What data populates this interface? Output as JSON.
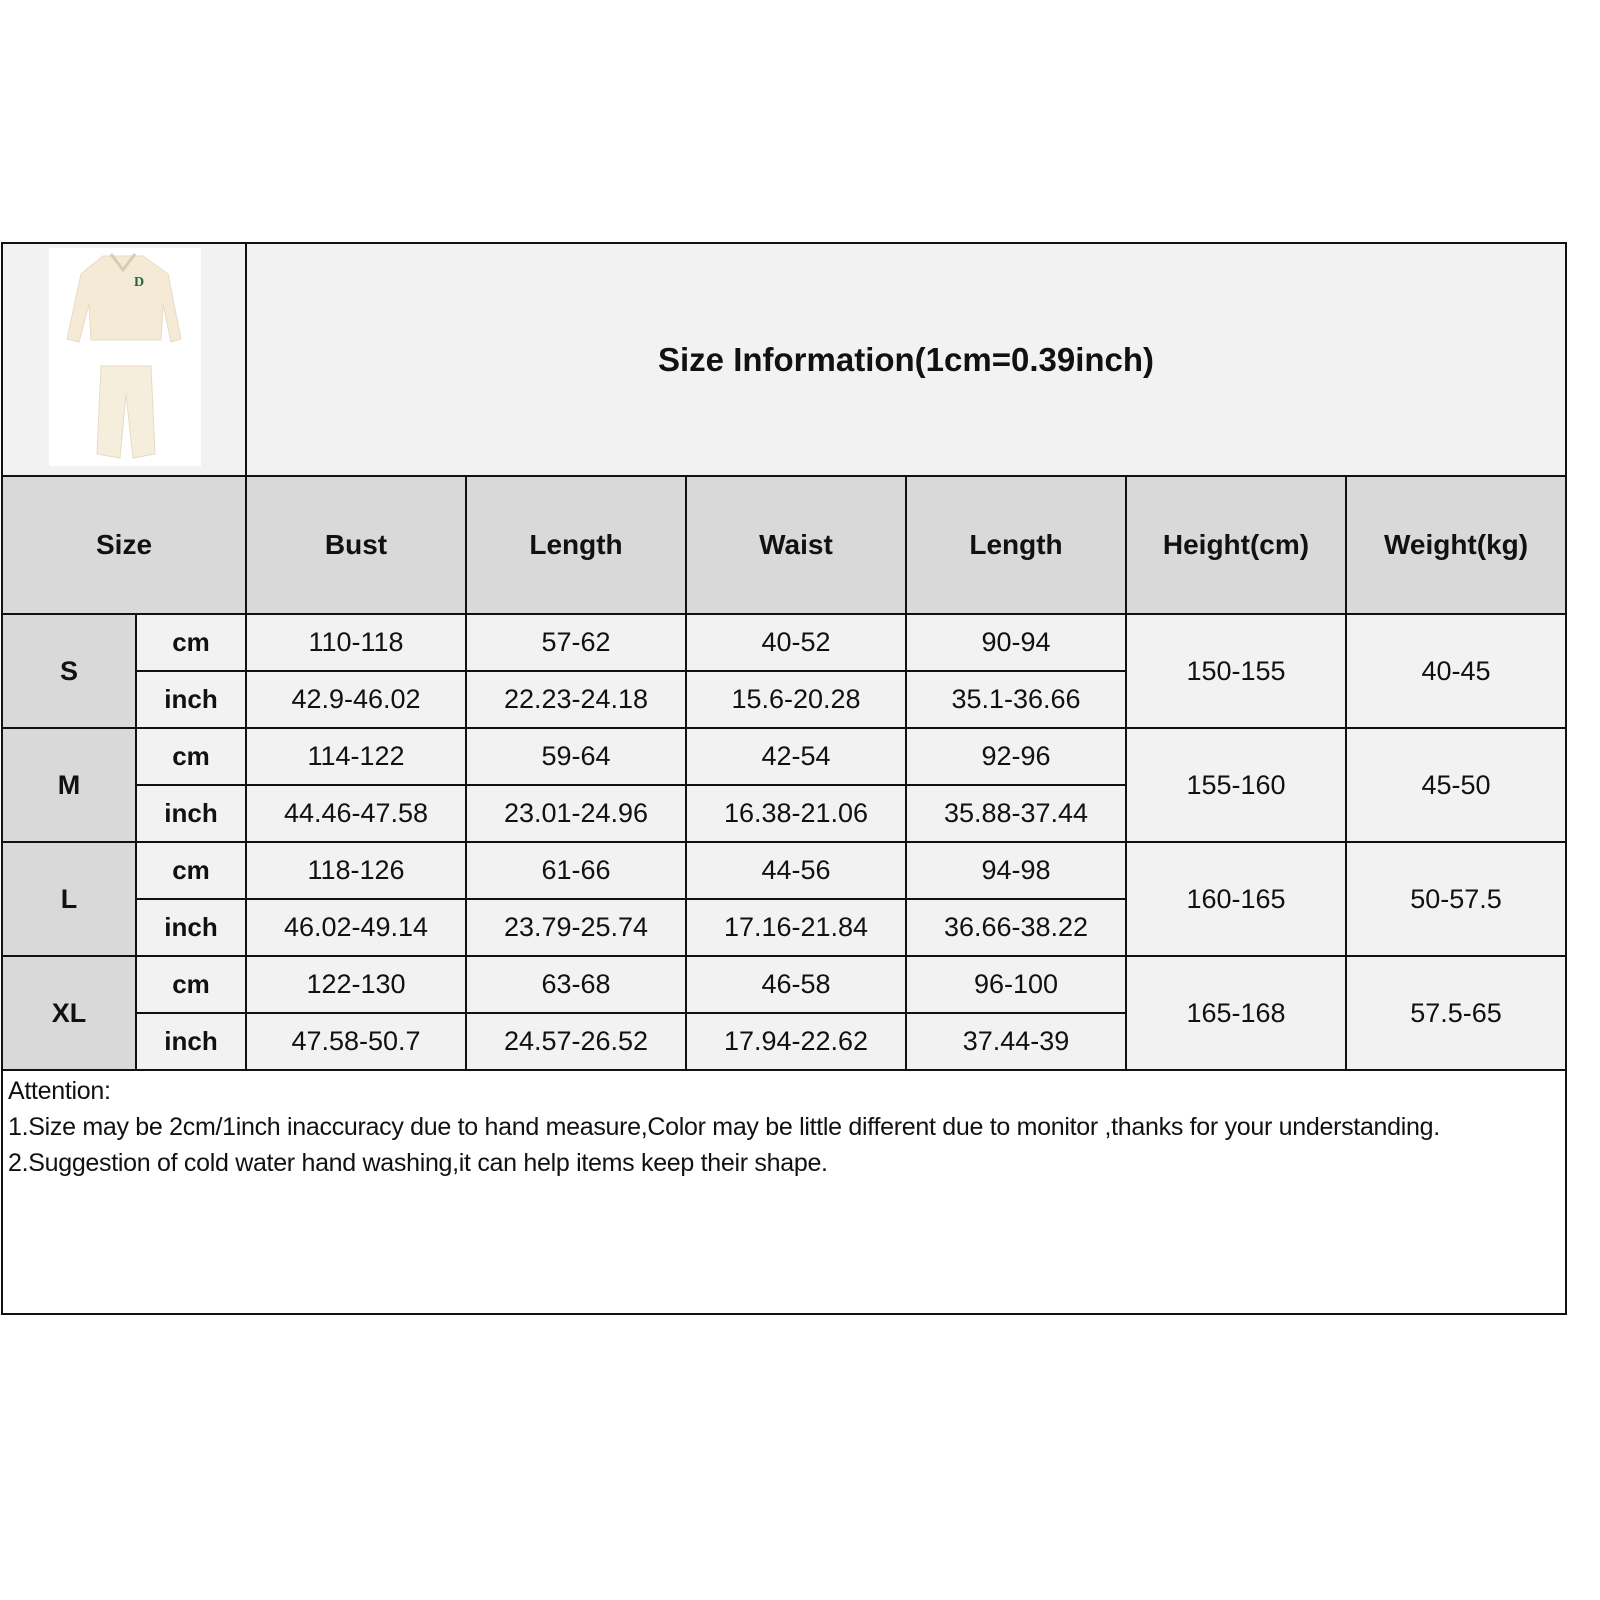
{
  "title": "Size Information(1cm=0.39inch)",
  "product_image": {
    "description_icon": "tracksuit-image",
    "logo_letter": "D",
    "accent_color": "#1f6b3a"
  },
  "colors": {
    "header_bg": "#d9d9d9",
    "cell_bg": "#f2f2f2",
    "border": "#111111"
  },
  "headers": [
    "Size",
    "Bust",
    "Length",
    "Waist",
    "Length",
    "Height(cm)",
    "Weight(kg)"
  ],
  "units": [
    "cm",
    "inch"
  ],
  "sizes": [
    {
      "size": "S",
      "cm": [
        "110-118",
        "57-62",
        "40-52",
        "90-94"
      ],
      "inch": [
        "42.9-46.02",
        "22.23-24.18",
        "15.6-20.28",
        "35.1-36.66"
      ],
      "height": "150-155",
      "weight": "40-45"
    },
    {
      "size": "M",
      "cm": [
        "114-122",
        "59-64",
        "42-54",
        "92-96"
      ],
      "inch": [
        "44.46-47.58",
        "23.01-24.96",
        "16.38-21.06",
        "35.88-37.44"
      ],
      "height": "155-160",
      "weight": "45-50"
    },
    {
      "size": "L",
      "cm": [
        "118-126",
        "61-66",
        "44-56",
        "94-98"
      ],
      "inch": [
        "46.02-49.14",
        "23.79-25.74",
        "17.16-21.84",
        "36.66-38.22"
      ],
      "height": "160-165",
      "weight": "50-57.5"
    },
    {
      "size": "XL",
      "cm": [
        "122-130",
        "63-68",
        "46-58",
        "96-100"
      ],
      "inch": [
        "47.58-50.7",
        "24.57-26.52",
        "17.94-22.62",
        "37.44-39"
      ],
      "height": "165-168",
      "weight": "57.5-65"
    }
  ],
  "attention": {
    "heading": "Attention:",
    "notes": [
      "1.Size may be 2cm/1inch inaccuracy due to hand measure,Color may be little different due to monitor ,thanks for your understanding.",
      "2.Suggestion of cold water hand washing,it can help items keep their shape."
    ]
  }
}
